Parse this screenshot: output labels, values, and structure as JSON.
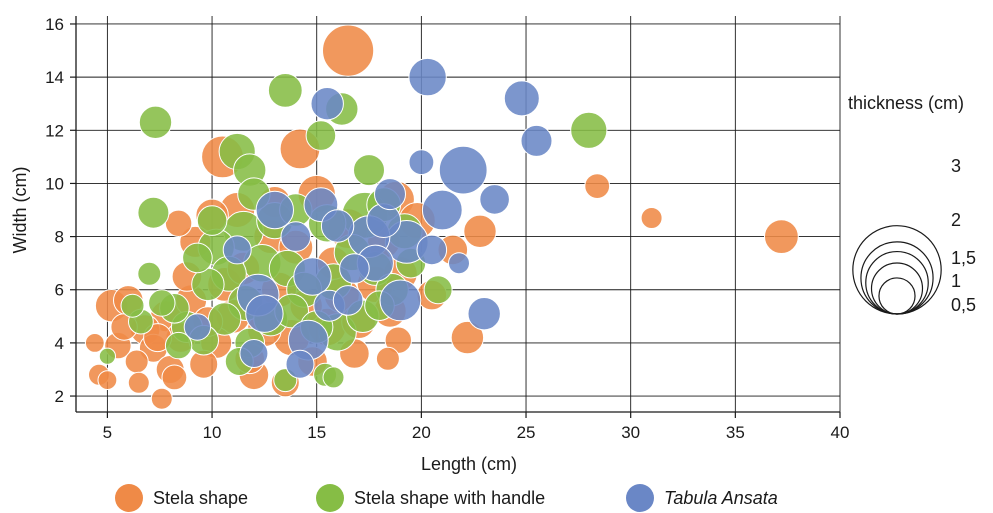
{
  "chart_data": {
    "type": "scatter",
    "xlabel": "Length (cm)",
    "ylabel": "Width (cm)",
    "xlim": [
      3.5,
      40
    ],
    "ylim": [
      1.4,
      16.3
    ],
    "xticks": [
      "5",
      "10",
      "15",
      "20",
      "25",
      "30",
      "35",
      "40"
    ],
    "yticks": [
      "2",
      "4",
      "6",
      "8",
      "10",
      "12",
      "14",
      "16"
    ],
    "grid": true,
    "legend_position": "bottom",
    "size_legend": {
      "title": "thickness (cm)",
      "entries": [
        {
          "label": "3",
          "value": 3
        },
        {
          "label": "2",
          "value": 2
        },
        {
          "label": "1,5",
          "value": 1.5
        },
        {
          "label": "1",
          "value": 1
        },
        {
          "label": "0,5",
          "value": 0.5
        }
      ]
    },
    "series": [
      {
        "name": "Stela shape",
        "italic": false,
        "color": "#ef8a47",
        "points": [
          [
            16.5,
            15.0,
            3.0
          ],
          [
            14.2,
            11.3,
            1.8
          ],
          [
            10.5,
            11.0,
            2.0
          ],
          [
            15.0,
            9.6,
            1.6
          ],
          [
            16.5,
            8.3,
            1.8
          ],
          [
            18.8,
            9.4,
            1.5
          ],
          [
            19.8,
            8.6,
            1.5
          ],
          [
            22.8,
            8.2,
            1.2
          ],
          [
            28.4,
            9.9,
            0.7
          ],
          [
            31.0,
            8.7,
            0.5
          ],
          [
            37.2,
            8.0,
            1.3
          ],
          [
            22.2,
            4.2,
            1.2
          ],
          [
            12.0,
            2.8,
            1.0
          ],
          [
            13.5,
            2.5,
            0.9
          ],
          [
            7.6,
            1.9,
            0.5
          ],
          [
            5.2,
            5.4,
            1.2
          ],
          [
            6.0,
            5.6,
            1.0
          ],
          [
            4.6,
            2.8,
            0.5
          ],
          [
            5.0,
            2.6,
            0.4
          ],
          [
            6.5,
            2.5,
            0.5
          ],
          [
            5.5,
            3.9,
            0.8
          ],
          [
            6.8,
            4.5,
            1.0
          ],
          [
            7.2,
            3.8,
            0.9
          ],
          [
            8.0,
            3.0,
            0.9
          ],
          [
            8.5,
            4.2,
            1.0
          ],
          [
            7.8,
            5.0,
            1.1
          ],
          [
            8.8,
            6.5,
            1.0
          ],
          [
            9.2,
            7.8,
            1.1
          ],
          [
            8.4,
            8.5,
            0.8
          ],
          [
            9.6,
            3.2,
            0.9
          ],
          [
            10.2,
            4.0,
            1.1
          ],
          [
            11.0,
            5.0,
            1.3
          ],
          [
            11.5,
            6.8,
            1.2
          ],
          [
            12.5,
            4.5,
            1.3
          ],
          [
            13.2,
            6.0,
            1.4
          ],
          [
            13.8,
            4.2,
            1.5
          ],
          [
            14.5,
            5.4,
            1.2
          ],
          [
            15.5,
            4.6,
            1.6
          ],
          [
            16.2,
            5.8,
            1.4
          ],
          [
            17.0,
            4.8,
            1.3
          ],
          [
            17.8,
            6.2,
            1.5
          ],
          [
            18.5,
            5.2,
            1.2
          ],
          [
            19.0,
            6.6,
            1.3
          ],
          [
            18.2,
            7.8,
            1.2
          ],
          [
            12.8,
            8.0,
            1.3
          ],
          [
            11.2,
            9.0,
            1.4
          ],
          [
            10.0,
            8.8,
            1.2
          ],
          [
            13.0,
            9.3,
            1.1
          ],
          [
            15.8,
            7.0,
            1.2
          ],
          [
            14.0,
            7.6,
            1.3
          ],
          [
            16.8,
            3.6,
            1.0
          ],
          [
            18.9,
            4.1,
            0.8
          ],
          [
            18.4,
            3.4,
            0.6
          ],
          [
            20.5,
            5.8,
            1.0
          ],
          [
            21.5,
            7.5,
            1.0
          ],
          [
            9.0,
            5.6,
            1.1
          ],
          [
            10.6,
            6.2,
            1.3
          ],
          [
            9.8,
            4.8,
            1.0
          ],
          [
            7.4,
            4.2,
            0.9
          ],
          [
            6.4,
            3.3,
            0.6
          ],
          [
            8.2,
            2.7,
            0.7
          ],
          [
            11.8,
            3.4,
            1.0
          ],
          [
            14.8,
            3.3,
            1.0
          ],
          [
            4.4,
            4.0,
            0.4
          ],
          [
            5.8,
            4.6,
            0.8
          ]
        ]
      },
      {
        "name": "Stela shape with handle",
        "italic": false,
        "color": "#86bd45",
        "points": [
          [
            13.5,
            13.5,
            1.3
          ],
          [
            16.2,
            12.8,
            1.2
          ],
          [
            7.3,
            12.3,
            1.2
          ],
          [
            11.2,
            11.2,
            1.5
          ],
          [
            15.2,
            11.8,
            1.0
          ],
          [
            11.8,
            10.5,
            1.2
          ],
          [
            17.5,
            10.5,
            1.1
          ],
          [
            28.0,
            12.0,
            1.5
          ],
          [
            7.2,
            8.9,
            1.1
          ],
          [
            17.3,
            8.8,
            2.4
          ],
          [
            15.5,
            8.5,
            1.6
          ],
          [
            13.0,
            8.6,
            1.5
          ],
          [
            11.5,
            8.2,
            1.8
          ],
          [
            10.2,
            7.6,
            1.5
          ],
          [
            9.3,
            7.2,
            1.0
          ],
          [
            9.8,
            6.2,
            1.2
          ],
          [
            10.8,
            6.6,
            1.4
          ],
          [
            12.4,
            7.0,
            1.6
          ],
          [
            13.6,
            6.8,
            1.5
          ],
          [
            14.4,
            6.0,
            1.4
          ],
          [
            15.8,
            6.3,
            1.5
          ],
          [
            16.7,
            7.4,
            1.5
          ],
          [
            17.8,
            6.8,
            1.3
          ],
          [
            18.6,
            6.0,
            1.2
          ],
          [
            19.5,
            7.0,
            1.0
          ],
          [
            20.8,
            6.0,
            0.9
          ],
          [
            8.2,
            5.3,
            1.0
          ],
          [
            8.8,
            4.6,
            1.1
          ],
          [
            7.6,
            5.5,
            0.8
          ],
          [
            9.6,
            4.1,
            1.0
          ],
          [
            10.6,
            4.9,
            1.2
          ],
          [
            11.6,
            5.5,
            1.4
          ],
          [
            12.8,
            4.9,
            1.3
          ],
          [
            13.8,
            5.2,
            1.3
          ],
          [
            15.0,
            4.6,
            1.2
          ],
          [
            16.0,
            4.4,
            1.6
          ],
          [
            17.2,
            5.0,
            1.2
          ],
          [
            15.4,
            2.8,
            0.6
          ],
          [
            15.8,
            2.7,
            0.5
          ],
          [
            13.5,
            2.6,
            0.6
          ],
          [
            11.3,
            3.3,
            0.9
          ],
          [
            8.4,
            3.9,
            0.8
          ],
          [
            7.0,
            6.6,
            0.6
          ],
          [
            6.6,
            4.8,
            0.7
          ],
          [
            12.0,
            9.6,
            1.2
          ],
          [
            14.0,
            9.0,
            1.2
          ],
          [
            18.2,
            9.2,
            1.3
          ],
          [
            19.2,
            8.2,
            1.4
          ],
          [
            10.0,
            8.6,
            1.0
          ],
          [
            11.8,
            4.0,
            1.0
          ],
          [
            5.0,
            3.5,
            0.3
          ],
          [
            6.2,
            5.4,
            0.6
          ],
          [
            18.0,
            5.4,
            1.0
          ]
        ]
      },
      {
        "name": "Tabula Ansata",
        "italic": true,
        "color": "#6a87c6",
        "points": [
          [
            20.3,
            14.0,
            1.6
          ],
          [
            24.8,
            13.2,
            1.4
          ],
          [
            15.5,
            13.0,
            1.2
          ],
          [
            25.5,
            11.6,
            1.1
          ],
          [
            22.0,
            10.5,
            2.6
          ],
          [
            20.0,
            10.8,
            0.7
          ],
          [
            18.5,
            9.6,
            1.1
          ],
          [
            23.5,
            9.4,
            1.0
          ],
          [
            21.0,
            9.0,
            1.8
          ],
          [
            19.3,
            7.8,
            2.1
          ],
          [
            17.5,
            8.0,
            2.0
          ],
          [
            16.0,
            8.4,
            1.2
          ],
          [
            15.2,
            9.2,
            1.3
          ],
          [
            13.0,
            9.0,
            1.6
          ],
          [
            14.0,
            8.0,
            1.0
          ],
          [
            11.2,
            7.5,
            0.9
          ],
          [
            12.2,
            5.8,
            2.0
          ],
          [
            12.5,
            5.1,
            1.6
          ],
          [
            14.8,
            6.5,
            1.6
          ],
          [
            15.6,
            5.4,
            1.1
          ],
          [
            16.5,
            5.6,
            1.0
          ],
          [
            17.8,
            7.0,
            1.5
          ],
          [
            19.0,
            5.6,
            1.9
          ],
          [
            20.5,
            7.5,
            1.0
          ],
          [
            21.8,
            7.0,
            0.5
          ],
          [
            23.0,
            5.1,
            1.2
          ],
          [
            14.6,
            4.1,
            1.8
          ],
          [
            12.0,
            3.6,
            0.9
          ],
          [
            14.2,
            3.2,
            0.9
          ],
          [
            9.3,
            4.6,
            0.8
          ],
          [
            16.8,
            6.8,
            1.0
          ],
          [
            18.2,
            8.6,
            1.3
          ]
        ]
      }
    ]
  }
}
